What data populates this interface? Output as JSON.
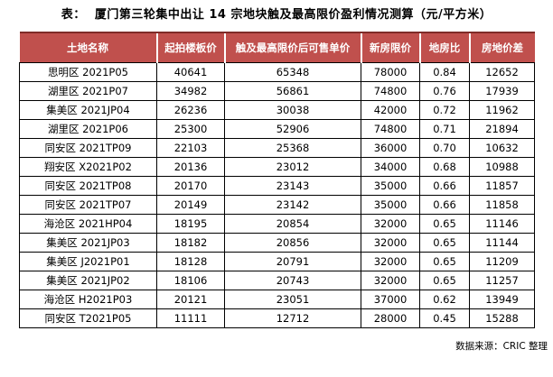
{
  "title": "表：  厦门第三轮集中出让 14 宗地块触及最高限价盈利情况测算（元/平方米）",
  "table": {
    "columns": [
      "土地名称",
      "起拍楼板价",
      "触及最高限价后可售单价",
      "新房限价",
      "地房比",
      "房地价差"
    ],
    "rows": [
      [
        "思明区 2021P05",
        "40641",
        "65348",
        "78000",
        "0.84",
        "12652"
      ],
      [
        "湖里区 2021P07",
        "34982",
        "56861",
        "74800",
        "0.76",
        "17939"
      ],
      [
        "集美区 2021JP04",
        "26236",
        "30038",
        "42000",
        "0.72",
        "11962"
      ],
      [
        "湖里区 2021P06",
        "25300",
        "52906",
        "74800",
        "0.71",
        "21894"
      ],
      [
        "同安区 2021TP09",
        "22103",
        "25368",
        "36000",
        "0.70",
        "10632"
      ],
      [
        "翔安区 X2021P02",
        "20136",
        "23012",
        "34000",
        "0.68",
        "10988"
      ],
      [
        "同安区 2021TP08",
        "20170",
        "23143",
        "35000",
        "0.66",
        "11857"
      ],
      [
        "同安区 2021TP07",
        "20149",
        "23142",
        "35000",
        "0.66",
        "11858"
      ],
      [
        "海沧区 2021HP04",
        "18195",
        "20854",
        "32000",
        "0.65",
        "11146"
      ],
      [
        "集美区 2021JP03",
        "18182",
        "20856",
        "32000",
        "0.65",
        "11144"
      ],
      [
        "集美区 J2021P01",
        "18128",
        "20791",
        "32000",
        "0.65",
        "11209"
      ],
      [
        "集美区 2021JP02",
        "18106",
        "20743",
        "32000",
        "0.65",
        "11257"
      ],
      [
        "海沧区 H2021P03",
        "20121",
        "23051",
        "37000",
        "0.62",
        "13949"
      ],
      [
        "同安区 T2021P05",
        "11111",
        "12712",
        "28000",
        "0.45",
        "15288"
      ]
    ]
  },
  "footer": {
    "source": "数据来源：CRIC 整理"
  },
  "colors": {
    "header_bg": "#C0504D",
    "header_top_border": "#7F2B28",
    "header_text": "#FFFFFF",
    "body_border": "#000000"
  }
}
